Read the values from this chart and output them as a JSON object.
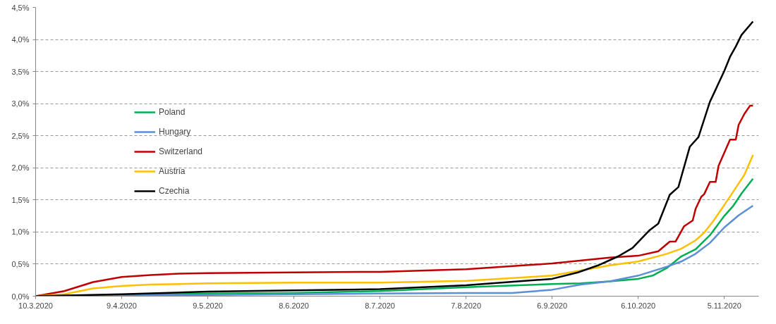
{
  "chart_data": {
    "type": "line",
    "xlim": [
      "2020-03-10",
      "2020-11-17"
    ],
    "ylim": [
      0,
      4.5
    ],
    "xticks": [
      {
        "value": "2020-03-10",
        "label": "10.3.2020"
      },
      {
        "value": "2020-04-09",
        "label": "9.4.2020"
      },
      {
        "value": "2020-05-09",
        "label": "9.5.2020"
      },
      {
        "value": "2020-06-08",
        "label": "8.6.2020"
      },
      {
        "value": "2020-07-08",
        "label": "8.7.2020"
      },
      {
        "value": "2020-08-07",
        "label": "7.8.2020"
      },
      {
        "value": "2020-09-06",
        "label": "6.9.2020"
      },
      {
        "value": "2020-10-06",
        "label": "6.10.2020"
      },
      {
        "value": "2020-11-05",
        "label": "5.11.2020"
      }
    ],
    "yticks": [
      {
        "value": 0,
        "label": "0,0%"
      },
      {
        "value": 0.5,
        "label": "0,5%"
      },
      {
        "value": 1,
        "label": "1,0%"
      },
      {
        "value": 1.5,
        "label": "1,5%"
      },
      {
        "value": 2,
        "label": "2,0%"
      },
      {
        "value": 2.5,
        "label": "2,5%"
      },
      {
        "value": 3,
        "label": "3,0%"
      },
      {
        "value": 3.5,
        "label": "3,5%"
      },
      {
        "value": 4,
        "label": "4,0%"
      },
      {
        "value": 4.5,
        "label": "4,5%"
      }
    ],
    "grid": "y",
    "legend": "left",
    "marker": "none",
    "line_style": "solid",
    "series": [
      {
        "name": "Poland",
        "color": "#00b050",
        "x": [
          "2020-03-10",
          "2020-04-09",
          "2020-05-09",
          "2020-06-08",
          "2020-07-08",
          "2020-08-07",
          "2020-09-06",
          "2020-09-16",
          "2020-09-26",
          "2020-10-06",
          "2020-10-11",
          "2020-10-16",
          "2020-10-21",
          "2020-10-26",
          "2020-10-31",
          "2020-11-05",
          "2020-11-08",
          "2020-11-11",
          "2020-11-15"
        ],
        "values": [
          0,
          0.02,
          0.04,
          0.05,
          0.08,
          0.14,
          0.19,
          0.2,
          0.23,
          0.27,
          0.32,
          0.44,
          0.62,
          0.73,
          0.95,
          1.25,
          1.4,
          1.6,
          1.83
        ]
      },
      {
        "name": "Hungary",
        "color": "#5b8fd6",
        "x": [
          "2020-03-10",
          "2020-04-09",
          "2020-05-09",
          "2020-06-08",
          "2020-07-08",
          "2020-08-07",
          "2020-08-23",
          "2020-09-06",
          "2020-09-16",
          "2020-09-26",
          "2020-10-06",
          "2020-10-16",
          "2020-10-21",
          "2020-10-26",
          "2020-10-31",
          "2020-11-05",
          "2020-11-10",
          "2020-11-15"
        ],
        "values": [
          0,
          0.01,
          0.02,
          0.03,
          0.04,
          0.05,
          0.05,
          0.1,
          0.18,
          0.23,
          0.32,
          0.46,
          0.54,
          0.66,
          0.83,
          1.07,
          1.26,
          1.41
        ]
      },
      {
        "name": "Switzerland",
        "color": "#c00000",
        "x": [
          "2020-03-10",
          "2020-03-20",
          "2020-03-30",
          "2020-04-09",
          "2020-04-19",
          "2020-04-29",
          "2020-05-09",
          "2020-06-08",
          "2020-07-08",
          "2020-08-07",
          "2020-09-06",
          "2020-09-26",
          "2020-10-06",
          "2020-10-13",
          "2020-10-17",
          "2020-10-19",
          "2020-10-22",
          "2020-10-25",
          "2020-10-26",
          "2020-10-28",
          "2020-10-29",
          "2020-10-31",
          "2020-11-02",
          "2020-11-03",
          "2020-11-07",
          "2020-11-09",
          "2020-11-10",
          "2020-11-12",
          "2020-11-14",
          "2020-11-15"
        ],
        "values": [
          0,
          0.08,
          0.22,
          0.3,
          0.33,
          0.35,
          0.36,
          0.37,
          0.38,
          0.42,
          0.51,
          0.6,
          0.63,
          0.7,
          0.85,
          0.85,
          1.09,
          1.18,
          1.36,
          1.55,
          1.59,
          1.78,
          1.78,
          2.03,
          2.44,
          2.44,
          2.67,
          2.84,
          2.97,
          2.97
        ]
      },
      {
        "name": "Austria",
        "color": "#ffc000",
        "x": [
          "2020-03-10",
          "2020-03-20",
          "2020-03-30",
          "2020-04-09",
          "2020-04-19",
          "2020-05-09",
          "2020-06-08",
          "2020-07-08",
          "2020-08-07",
          "2020-09-06",
          "2020-09-16",
          "2020-09-26",
          "2020-10-06",
          "2020-10-16",
          "2020-10-21",
          "2020-10-26",
          "2020-10-29",
          "2020-11-01",
          "2020-11-05",
          "2020-11-08",
          "2020-11-12",
          "2020-11-15"
        ],
        "values": [
          0,
          0.03,
          0.12,
          0.16,
          0.18,
          0.2,
          0.21,
          0.21,
          0.24,
          0.32,
          0.4,
          0.48,
          0.54,
          0.66,
          0.74,
          0.87,
          0.99,
          1.16,
          1.42,
          1.62,
          1.89,
          2.2
        ]
      },
      {
        "name": "Czechia",
        "color": "#000000",
        "x": [
          "2020-03-10",
          "2020-04-09",
          "2020-05-09",
          "2020-06-08",
          "2020-07-08",
          "2020-08-07",
          "2020-09-06",
          "2020-09-15",
          "2020-09-22",
          "2020-09-29",
          "2020-10-04",
          "2020-10-10",
          "2020-10-13",
          "2020-10-17",
          "2020-10-20",
          "2020-10-24",
          "2020-10-27",
          "2020-10-31",
          "2020-11-02",
          "2020-11-05",
          "2020-11-07",
          "2020-11-09",
          "2020-11-11",
          "2020-11-15"
        ],
        "values": [
          0,
          0.03,
          0.07,
          0.09,
          0.11,
          0.17,
          0.27,
          0.37,
          0.48,
          0.62,
          0.75,
          1.03,
          1.13,
          1.58,
          1.7,
          2.33,
          2.48,
          3.03,
          3.22,
          3.51,
          3.73,
          3.89,
          4.07,
          4.28
        ]
      }
    ]
  }
}
